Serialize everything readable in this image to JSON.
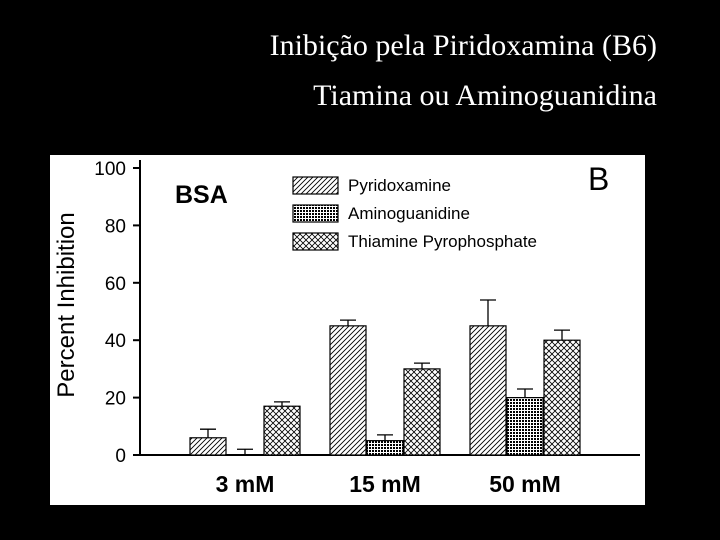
{
  "slide_title": [
    "Inibição pela Piridoxamina (B6)",
    "Tiamina  ou Aminoguanidina"
  ],
  "chart_data": {
    "type": "bar",
    "panel_label": "B",
    "annotation": "BSA",
    "y_label": "Percent Inhibition",
    "categories": [
      "3 mM",
      "15 mM",
      "50 mM"
    ],
    "series": [
      {
        "name": "Pyridoxamine",
        "color": "#000000",
        "pattern": "hatch",
        "values": [
          6,
          45,
          45
        ],
        "errors": [
          3,
          2,
          9
        ]
      },
      {
        "name": "Aminoguanidine",
        "color": "#000000",
        "pattern": "dots",
        "values": [
          0,
          5,
          20
        ],
        "errors": [
          2,
          2,
          3
        ]
      },
      {
        "name": "Thiamine Pyrophosphate",
        "color": "#000000",
        "pattern": "cross",
        "values": [
          17,
          30,
          40
        ],
        "errors": [
          1.5,
          2,
          3.5
        ]
      }
    ],
    "ylim": [
      0,
      100
    ],
    "yticks": [
      0,
      20,
      40,
      60,
      80,
      100
    ]
  }
}
